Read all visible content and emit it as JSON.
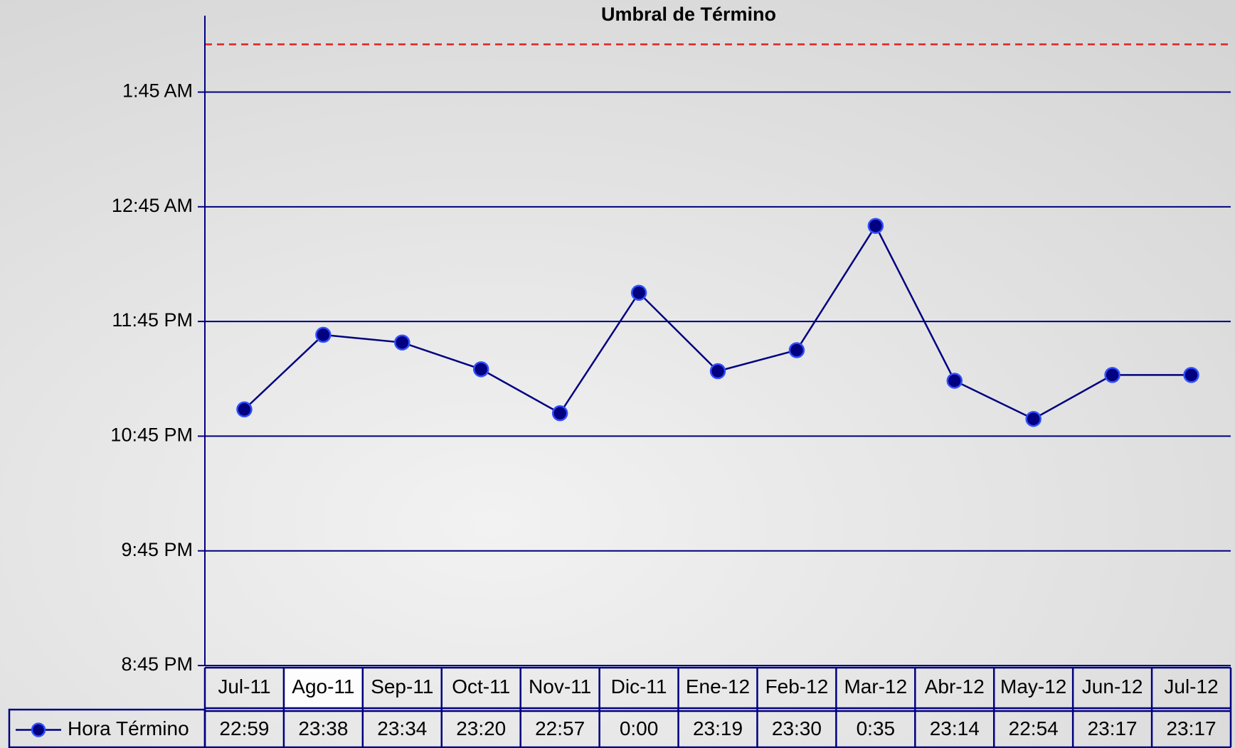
{
  "chart_data": {
    "type": "line",
    "title": "Umbral de Término",
    "categories": [
      "Jul-11",
      "Ago-11",
      "Sep-11",
      "Oct-11",
      "Nov-11",
      "Dic-11",
      "Ene-12",
      "Feb-12",
      "Mar-12",
      "Abr-12",
      "May-12",
      "Jun-12",
      "Jul-12"
    ],
    "series": [
      {
        "name": "Hora Término",
        "color": "#000080",
        "values": [
          1379,
          1418,
          1414,
          1400,
          1377,
          1440,
          1399,
          1410,
          1475,
          1394,
          1374,
          1397,
          1397
        ],
        "value_labels": [
          "22:59",
          "23:38",
          "23:34",
          "23:20",
          "22:57",
          "0:00",
          "23:19",
          "23:30",
          "0:35",
          "23:14",
          "22:54",
          "23:17",
          "23:17"
        ]
      }
    ],
    "threshold": 1570,
    "threshold_color": "#e02020",
    "ylim": [
      1245,
      1585
    ],
    "yticks": [
      {
        "value": 1245,
        "label": "8:45 PM"
      },
      {
        "value": 1305,
        "label": "9:45 PM"
      },
      {
        "value": 1365,
        "label": "10:45 PM"
      },
      {
        "value": 1425,
        "label": "11:45 PM"
      },
      {
        "value": 1485,
        "label": "12:45 AM"
      },
      {
        "value": 1545,
        "label": "1:45 AM"
      }
    ],
    "grid": true
  }
}
